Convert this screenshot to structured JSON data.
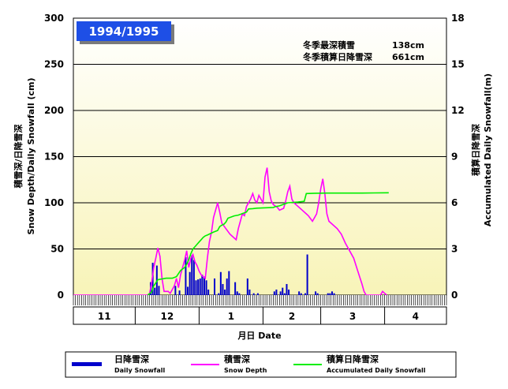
{
  "chart_data": {
    "type": "bar+line",
    "season_label": "1994/1995",
    "stats": [
      {
        "label": "冬季最深積雪",
        "value": "138cm"
      },
      {
        "label": "冬季積算日降雪深",
        "value": "661cm"
      }
    ],
    "ylabel_left": "積雪深/日降雪深 Snow Depth/Daily Snowfall (cm)",
    "ylabel_left_jp": "積雪深/日降雪深",
    "ylabel_left_en": "Snow Depth/Daily Snowfall (cm)",
    "ylabel_right_jp": "積算日降雪深",
    "ylabel_right_en": "Accumulated Daily Snowfall(m)",
    "xlabel": "月日 Date",
    "ylim_left": [
      0,
      300
    ],
    "ylim_right": [
      0,
      18
    ],
    "yticks_left": [
      "0",
      "50",
      "100",
      "150",
      "200",
      "250",
      "300"
    ],
    "yticks_right": [
      "0",
      "3",
      "6",
      "9",
      "12",
      "15",
      "18"
    ],
    "months": [
      "11",
      "12",
      "1",
      "2",
      "3",
      "4"
    ],
    "month_days": [
      30,
      31,
      31,
      28,
      31,
      30
    ],
    "grid": true,
    "series": [
      {
        "name": "日降雪深 Daily Snowfall",
        "name_jp": "日降雪深",
        "name_en": "Daily Snowfall",
        "type": "bar",
        "color": "#0000cc",
        "day_offsets": [
          37,
          38,
          39,
          40,
          41,
          49,
          51,
          54,
          55,
          56,
          57,
          58,
          59,
          60,
          61,
          62,
          63,
          64,
          65,
          68,
          70,
          71,
          72,
          73,
          74,
          75,
          78,
          79,
          80,
          84,
          85,
          87,
          89,
          97,
          98,
          100,
          101,
          102,
          103,
          104,
          109,
          110,
          112,
          113,
          117,
          118,
          123,
          124,
          125,
          126
        ],
        "values": [
          14,
          35,
          8,
          32,
          10,
          10,
          5,
          41,
          9,
          25,
          43,
          38,
          16,
          17,
          18,
          22,
          20,
          16,
          6,
          18,
          2,
          25,
          12,
          6,
          18,
          26,
          14,
          4,
          2,
          18,
          6,
          2,
          2,
          4,
          6,
          4,
          8,
          2,
          12,
          6,
          4,
          2,
          2,
          44,
          4,
          2,
          2,
          2,
          4,
          2
        ]
      },
      {
        "name": "積雪深 Snow Depth",
        "name_jp": "積雪深",
        "name_en": "Snow Depth",
        "type": "line",
        "color": "#ff00ff",
        "points": [
          [
            0,
            0
          ],
          [
            36,
            0
          ],
          [
            37,
            2
          ],
          [
            38,
            14
          ],
          [
            39,
            30
          ],
          [
            40,
            40
          ],
          [
            41,
            51
          ],
          [
            42,
            42
          ],
          [
            43,
            18
          ],
          [
            44,
            4
          ],
          [
            46,
            4
          ],
          [
            47,
            2
          ],
          [
            49,
            10
          ],
          [
            50,
            18
          ],
          [
            51,
            8
          ],
          [
            52,
            22
          ],
          [
            53,
            30
          ],
          [
            54,
            38
          ],
          [
            55,
            48
          ],
          [
            56,
            30
          ],
          [
            57,
            40
          ],
          [
            58,
            44
          ],
          [
            59,
            36
          ],
          [
            60,
            32
          ],
          [
            61,
            26
          ],
          [
            62,
            22
          ],
          [
            63,
            20
          ],
          [
            64,
            18
          ],
          [
            65,
            40
          ],
          [
            66,
            58
          ],
          [
            67,
            68
          ],
          [
            68,
            84
          ],
          [
            69,
            92
          ],
          [
            70,
            100
          ],
          [
            71,
            90
          ],
          [
            72,
            78
          ],
          [
            74,
            72
          ],
          [
            76,
            66
          ],
          [
            78,
            62
          ],
          [
            79,
            60
          ],
          [
            80,
            72
          ],
          [
            81,
            80
          ],
          [
            82,
            88
          ],
          [
            83,
            86
          ],
          [
            84,
            96
          ],
          [
            86,
            104
          ],
          [
            87,
            110
          ],
          [
            88,
            103
          ],
          [
            89,
            100
          ],
          [
            90,
            108
          ],
          [
            91,
            104
          ],
          [
            92,
            100
          ],
          [
            93,
            128
          ],
          [
            94,
            138
          ],
          [
            95,
            112
          ],
          [
            96,
            102
          ],
          [
            97,
            98
          ],
          [
            99,
            95
          ],
          [
            100,
            92
          ],
          [
            102,
            94
          ],
          [
            103,
            102
          ],
          [
            104,
            112
          ],
          [
            105,
            118
          ],
          [
            106,
            104
          ],
          [
            107,
            100
          ],
          [
            108,
            98
          ],
          [
            110,
            94
          ],
          [
            112,
            90
          ],
          [
            113,
            88
          ],
          [
            114,
            86
          ],
          [
            116,
            80
          ],
          [
            117,
            84
          ],
          [
            118,
            88
          ],
          [
            119,
            100
          ],
          [
            120,
            115
          ],
          [
            121,
            126
          ],
          [
            122,
            110
          ],
          [
            123,
            88
          ],
          [
            124,
            80
          ],
          [
            126,
            76
          ],
          [
            128,
            72
          ],
          [
            130,
            66
          ],
          [
            132,
            56
          ],
          [
            134,
            48
          ],
          [
            136,
            40
          ],
          [
            138,
            26
          ],
          [
            140,
            12
          ],
          [
            141,
            4
          ],
          [
            142,
            0
          ],
          [
            149,
            0
          ],
          [
            150,
            4
          ],
          [
            151,
            2
          ],
          [
            152,
            0
          ]
        ]
      },
      {
        "name": "積算日降雪深 Accumulated Daily Snowfall",
        "name_jp": "積算日降雪深",
        "name_en": "Accumulated Daily Snowfall",
        "type": "line",
        "axis": "right",
        "color": "#00ee00",
        "points": [
          [
            36,
            0
          ],
          [
            38,
            0.2
          ],
          [
            39,
            0.6
          ],
          [
            40,
            0.8
          ],
          [
            41,
            1.0
          ],
          [
            45,
            1.1
          ],
          [
            48,
            1.1
          ],
          [
            50,
            1.2
          ],
          [
            52,
            1.6
          ],
          [
            54,
            1.8
          ],
          [
            55,
            2.0
          ],
          [
            56,
            2.3
          ],
          [
            57,
            2.7
          ],
          [
            58,
            3.0
          ],
          [
            59,
            3.15
          ],
          [
            60,
            3.3
          ],
          [
            61,
            3.45
          ],
          [
            62,
            3.6
          ],
          [
            63,
            3.75
          ],
          [
            64,
            3.85
          ],
          [
            65,
            3.9
          ],
          [
            68,
            4.1
          ],
          [
            70,
            4.2
          ],
          [
            71,
            4.45
          ],
          [
            72,
            4.55
          ],
          [
            73,
            4.6
          ],
          [
            74,
            4.75
          ],
          [
            75,
            5.0
          ],
          [
            78,
            5.15
          ],
          [
            80,
            5.2
          ],
          [
            84,
            5.4
          ],
          [
            85,
            5.6
          ],
          [
            87,
            5.62
          ],
          [
            89,
            5.65
          ],
          [
            97,
            5.7
          ],
          [
            98,
            5.75
          ],
          [
            100,
            5.8
          ],
          [
            101,
            5.85
          ],
          [
            103,
            5.95
          ],
          [
            104,
            6.0
          ],
          [
            109,
            6.05
          ],
          [
            112,
            6.1
          ],
          [
            113,
            6.6
          ],
          [
            117,
            6.62
          ],
          [
            123,
            6.63
          ],
          [
            130,
            6.63
          ],
          [
            140,
            6.63
          ],
          [
            146,
            6.64
          ],
          [
            153,
            6.65
          ]
        ]
      }
    ]
  }
}
